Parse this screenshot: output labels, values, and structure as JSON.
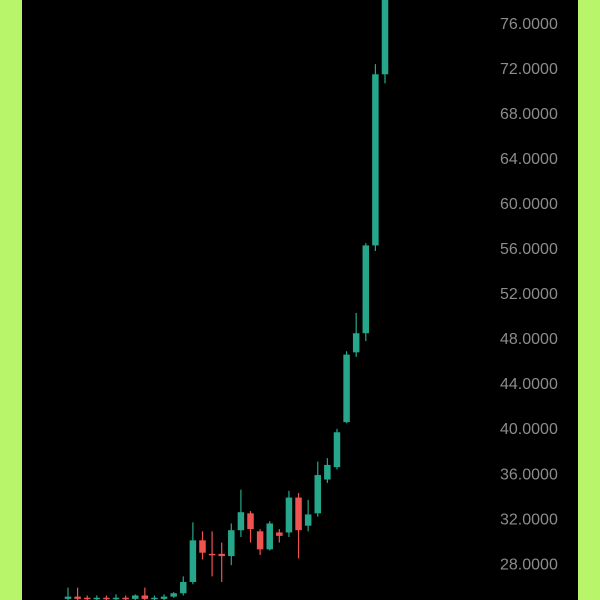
{
  "chart_data": {
    "type": "candlestick",
    "up_color": "#26a68a",
    "down_color": "#ef5350",
    "ylim": [
      24.9,
      78.2
    ],
    "yticks": [
      {
        "value": 28,
        "label": "28.0000"
      },
      {
        "value": 32,
        "label": "32.0000"
      },
      {
        "value": 36,
        "label": "36.0000"
      },
      {
        "value": 40,
        "label": "40.0000"
      },
      {
        "value": 44,
        "label": "44.0000"
      },
      {
        "value": 48,
        "label": "48.0000"
      },
      {
        "value": 52,
        "label": "52.0000"
      },
      {
        "value": 56,
        "label": "56.0000"
      },
      {
        "value": 60,
        "label": "60.0000"
      },
      {
        "value": 64,
        "label": "64.0000"
      },
      {
        "value": 68,
        "label": "68.0000"
      },
      {
        "value": 72,
        "label": "72.0000"
      },
      {
        "value": 76,
        "label": "76.0000"
      }
    ],
    "open": [
      25.0,
      25.2,
      25.1,
      25.0,
      25.1,
      25.0,
      25.1,
      25.0,
      25.3,
      25.0,
      25.0,
      25.2,
      25.5,
      26.5,
      30.2,
      29.0,
      29.0,
      28.8,
      31.1,
      32.6,
      31.0,
      29.4,
      30.9,
      30.9,
      34.0,
      31.5,
      32.6,
      35.6,
      36.7,
      40.7,
      46.9,
      48.6,
      56.4,
      71.6
    ],
    "high": [
      26.0,
      26.0,
      25.3,
      25.3,
      25.3,
      25.4,
      25.3,
      25.4,
      26.0,
      25.3,
      25.4,
      25.6,
      27.0,
      31.8,
      31.0,
      31.0,
      30.0,
      31.7,
      34.7,
      32.8,
      31.2,
      31.9,
      31.2,
      34.6,
      34.4,
      33.8,
      37.2,
      37.5,
      40.1,
      47.0,
      50.4,
      56.6,
      72.5,
      78.2
    ],
    "low": [
      24.9,
      24.9,
      24.9,
      24.9,
      24.9,
      24.9,
      24.9,
      24.9,
      24.9,
      24.9,
      24.9,
      25.1,
      25.3,
      26.3,
      28.5,
      27.0,
      26.5,
      28.0,
      30.5,
      30.0,
      28.9,
      29.3,
      30.0,
      30.5,
      28.6,
      31.0,
      32.3,
      35.3,
      36.5,
      40.6,
      46.5,
      47.9,
      55.9,
      70.8
    ],
    "close": [
      25.2,
      25.0,
      25.0,
      25.1,
      25.0,
      25.1,
      25.0,
      25.3,
      25.0,
      25.1,
      25.2,
      25.5,
      26.5,
      30.2,
      29.1,
      28.9,
      28.8,
      31.1,
      32.7,
      31.2,
      29.4,
      31.7,
      30.6,
      34.0,
      31.1,
      32.5,
      36.0,
      36.9,
      39.8,
      46.7,
      48.6,
      56.4,
      71.6,
      78.2
    ]
  }
}
